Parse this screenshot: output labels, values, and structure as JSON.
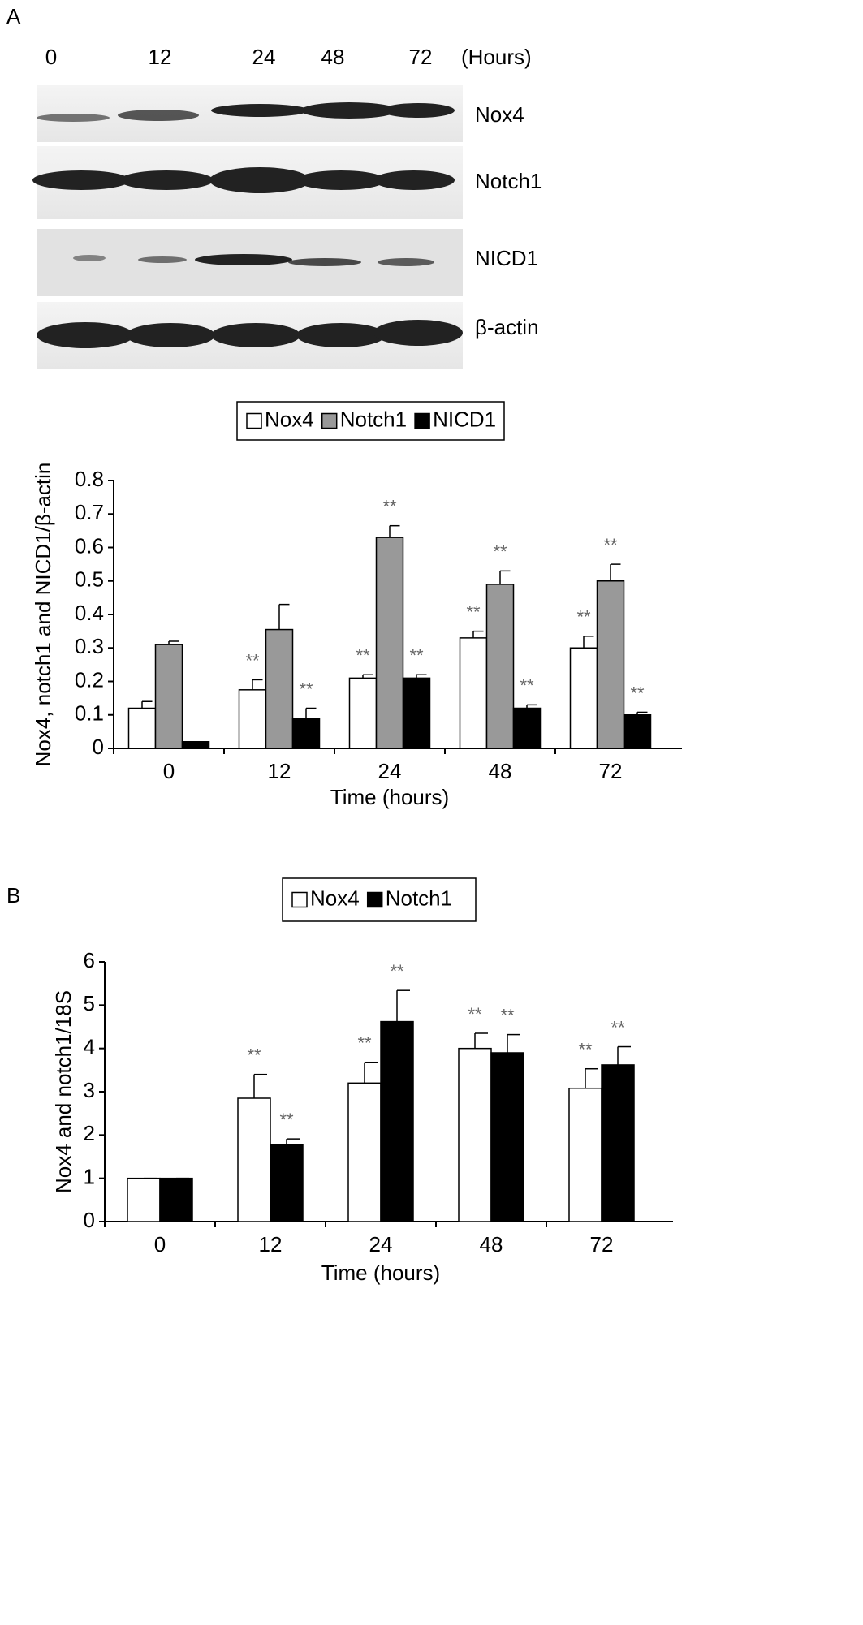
{
  "blot": {
    "panel_label": "A",
    "lanes": [
      "0",
      "12",
      "24",
      "48",
      "72"
    ],
    "unit": "(Hours)",
    "proteins": [
      "Nox4",
      "Notch1",
      "NICD1",
      "β-actin"
    ]
  },
  "chart_data": [
    {
      "type": "bar",
      "y_label": "Nox4, notch1 and NICD1/β-actin",
      "x_label": "Time (hours)",
      "categories": [
        "0",
        "12",
        "24",
        "48",
        "72"
      ],
      "series": [
        {
          "name": "Nox4",
          "color": "#ffffff",
          "values": [
            0.12,
            0.175,
            0.21,
            0.33,
            0.3
          ],
          "errors": [
            0.02,
            0.03,
            0.01,
            0.02,
            0.035
          ],
          "significance": [
            null,
            "**",
            "**",
            "**",
            "**"
          ]
        },
        {
          "name": "Notch1",
          "color": "#999999",
          "values": [
            0.31,
            0.355,
            0.63,
            0.49,
            0.5
          ],
          "errors": [
            0.01,
            0.075,
            0.035,
            0.04,
            0.05
          ],
          "significance": [
            null,
            null,
            "**",
            "**",
            "**"
          ]
        },
        {
          "name": "NICD1",
          "color": "#000000",
          "values": [
            0.02,
            0.09,
            0.21,
            0.12,
            0.1
          ],
          "errors": [
            0,
            0.03,
            0.01,
            0.01,
            0.008
          ],
          "significance": [
            null,
            "**",
            "**",
            "**",
            "**"
          ]
        }
      ],
      "ylim": [
        0,
        0.8
      ],
      "yticks": [
        0,
        0.1,
        0.2,
        0.3,
        0.4,
        0.5,
        0.6,
        0.7,
        0.8
      ]
    },
    {
      "type": "bar",
      "panel_label": "B",
      "y_label": "Nox4 and notch1/18S",
      "x_label": "Time (hours)",
      "categories": [
        "0",
        "12",
        "24",
        "48",
        "72"
      ],
      "series": [
        {
          "name": "Nox4",
          "color": "#ffffff",
          "values": [
            1,
            2.85,
            3.2,
            4.0,
            3.08
          ],
          "errors": [
            0,
            0.55,
            0.48,
            0.35,
            0.45
          ],
          "significance": [
            null,
            "**",
            "**",
            "**",
            "**"
          ]
        },
        {
          "name": "Notch1",
          "color": "#000000",
          "values": [
            1,
            1.78,
            4.62,
            3.9,
            3.62
          ],
          "errors": [
            0,
            0.13,
            0.72,
            0.42,
            0.42
          ],
          "significance": [
            null,
            "**",
            "**",
            "**",
            "**"
          ]
        }
      ],
      "ylim": [
        0,
        6
      ],
      "yticks": [
        0,
        1,
        2,
        3,
        4,
        5,
        6
      ]
    }
  ]
}
